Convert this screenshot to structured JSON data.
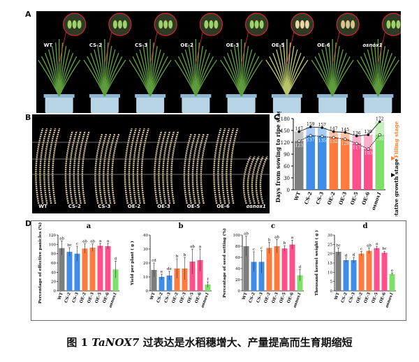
{
  "panels": {
    "a": "A",
    "b": "B",
    "c": "C",
    "d": "D"
  },
  "panelA": {
    "labels": [
      "WT",
      "CS-2",
      "CS-3",
      "OE-2",
      "OE-3",
      "OE-5",
      "OE-6",
      "osnox1"
    ]
  },
  "panelB": {
    "labels": [
      "WT",
      "CS-2",
      "CS-3",
      "OE-2",
      "OE-3",
      "OE-5",
      "OE-6",
      "osnox1"
    ]
  },
  "colors": {
    "wt": "#7d7d7d",
    "cs": "#3e8ee8",
    "oe": "#ff7a3d",
    "oe_alt": "#ff4f8b",
    "mutant": "#7ee06b",
    "filling": "#ff7f2a"
  },
  "chart_data": [
    {
      "type": "bar",
      "panel": "C",
      "categories": [
        "WT",
        "CS-2",
        "CS-3",
        "OE-2",
        "OE-3",
        "OE-5",
        "OE-6",
        "osnox1"
      ],
      "ylabel": "Days from sowing to ripe stage",
      "ylim": [
        0,
        180
      ],
      "yticks": [
        0,
        30,
        60,
        90,
        120,
        150,
        180
      ],
      "series": [
        {
          "name": "Vegetative growth stage",
          "values": [
            123,
            137,
            135,
            132,
            128,
            117,
            103,
            139
          ]
        },
        {
          "name": "Filling stage",
          "values": [
            147,
            159,
            157,
            147,
            145,
            136,
            139,
            172
          ]
        }
      ]
    },
    {
      "type": "bar",
      "panel": "a",
      "categories": [
        "WT",
        "CS-2",
        "CS-3",
        "OE-2",
        "OE-3",
        "OE-5",
        "OE-6",
        "osnox1"
      ],
      "ylabel": "Percentage of effective panicles (%)",
      "ylim": [
        0,
        120
      ],
      "yticks": [
        0,
        20,
        40,
        60,
        80,
        100,
        120
      ],
      "values": [
        92,
        84,
        80,
        91,
        93,
        97,
        96,
        46
      ],
      "errors": [
        15,
        9,
        16,
        10,
        8,
        5,
        6,
        18
      ],
      "letters": [
        "ab",
        "bc",
        "c",
        "ab",
        "ab",
        "a",
        "a",
        "d"
      ]
    },
    {
      "type": "bar",
      "panel": "b",
      "categories": [
        "WT",
        "CS-2",
        "CS-3",
        "OE-2",
        "OE-3",
        "OE-5",
        "OE-6",
        "osnox1"
      ],
      "ylabel": "Yield per plant ( g )",
      "ylim": [
        0,
        40
      ],
      "yticks": [
        0,
        10,
        20,
        30,
        40
      ],
      "values": [
        15,
        10,
        11,
        16,
        16,
        21,
        22,
        4.5
      ],
      "errors": [
        5,
        2,
        3,
        7,
        8,
        9,
        8,
        2
      ],
      "letters": [
        "cd",
        "e",
        "de",
        "b",
        "b",
        "ab",
        "a",
        "f"
      ]
    },
    {
      "type": "bar",
      "panel": "c",
      "categories": [
        "WT",
        "CS-2",
        "CS-3",
        "OE-2",
        "OE-3",
        "OE-5",
        "OE-6",
        "osnox1"
      ],
      "ylabel": "Percentage of seed setting (%)",
      "ylim": [
        0,
        100
      ],
      "yticks": [
        0,
        20,
        40,
        60,
        80,
        100
      ],
      "values": [
        80,
        52,
        52,
        77,
        80,
        76,
        83,
        28
      ],
      "errors": [
        18,
        18,
        20,
        10,
        12,
        5,
        8,
        10
      ],
      "letters": [
        "ab",
        "c",
        "c",
        "b",
        "ab",
        "b",
        "a",
        "d"
      ]
    },
    {
      "type": "bar",
      "panel": "d",
      "categories": [
        "WT",
        "CS-2",
        "CS-3",
        "OE-2",
        "OE-3",
        "OE-5",
        "OE-6",
        "osnox1"
      ],
      "ylabel": "Thousand kernel weight ( g )",
      "ylim": [
        0,
        30
      ],
      "yticks": [
        0,
        5,
        10,
        15,
        20,
        25,
        30
      ],
      "values": [
        21,
        16.5,
        16.5,
        20,
        21.5,
        23,
        20.5,
        9
      ],
      "errors": [
        2,
        1.2,
        1.5,
        1.2,
        1.5,
        1,
        0.8,
        0.6
      ],
      "letters": [
        "bc",
        "d",
        "d",
        "c",
        "ab",
        "a",
        "bc",
        "e"
      ]
    }
  ],
  "caption": {
    "prefix": "图 1 ",
    "gene": "TaNOX7",
    "rest": " 过表达是水稻穗增大、产量提高而生育期缩短"
  }
}
